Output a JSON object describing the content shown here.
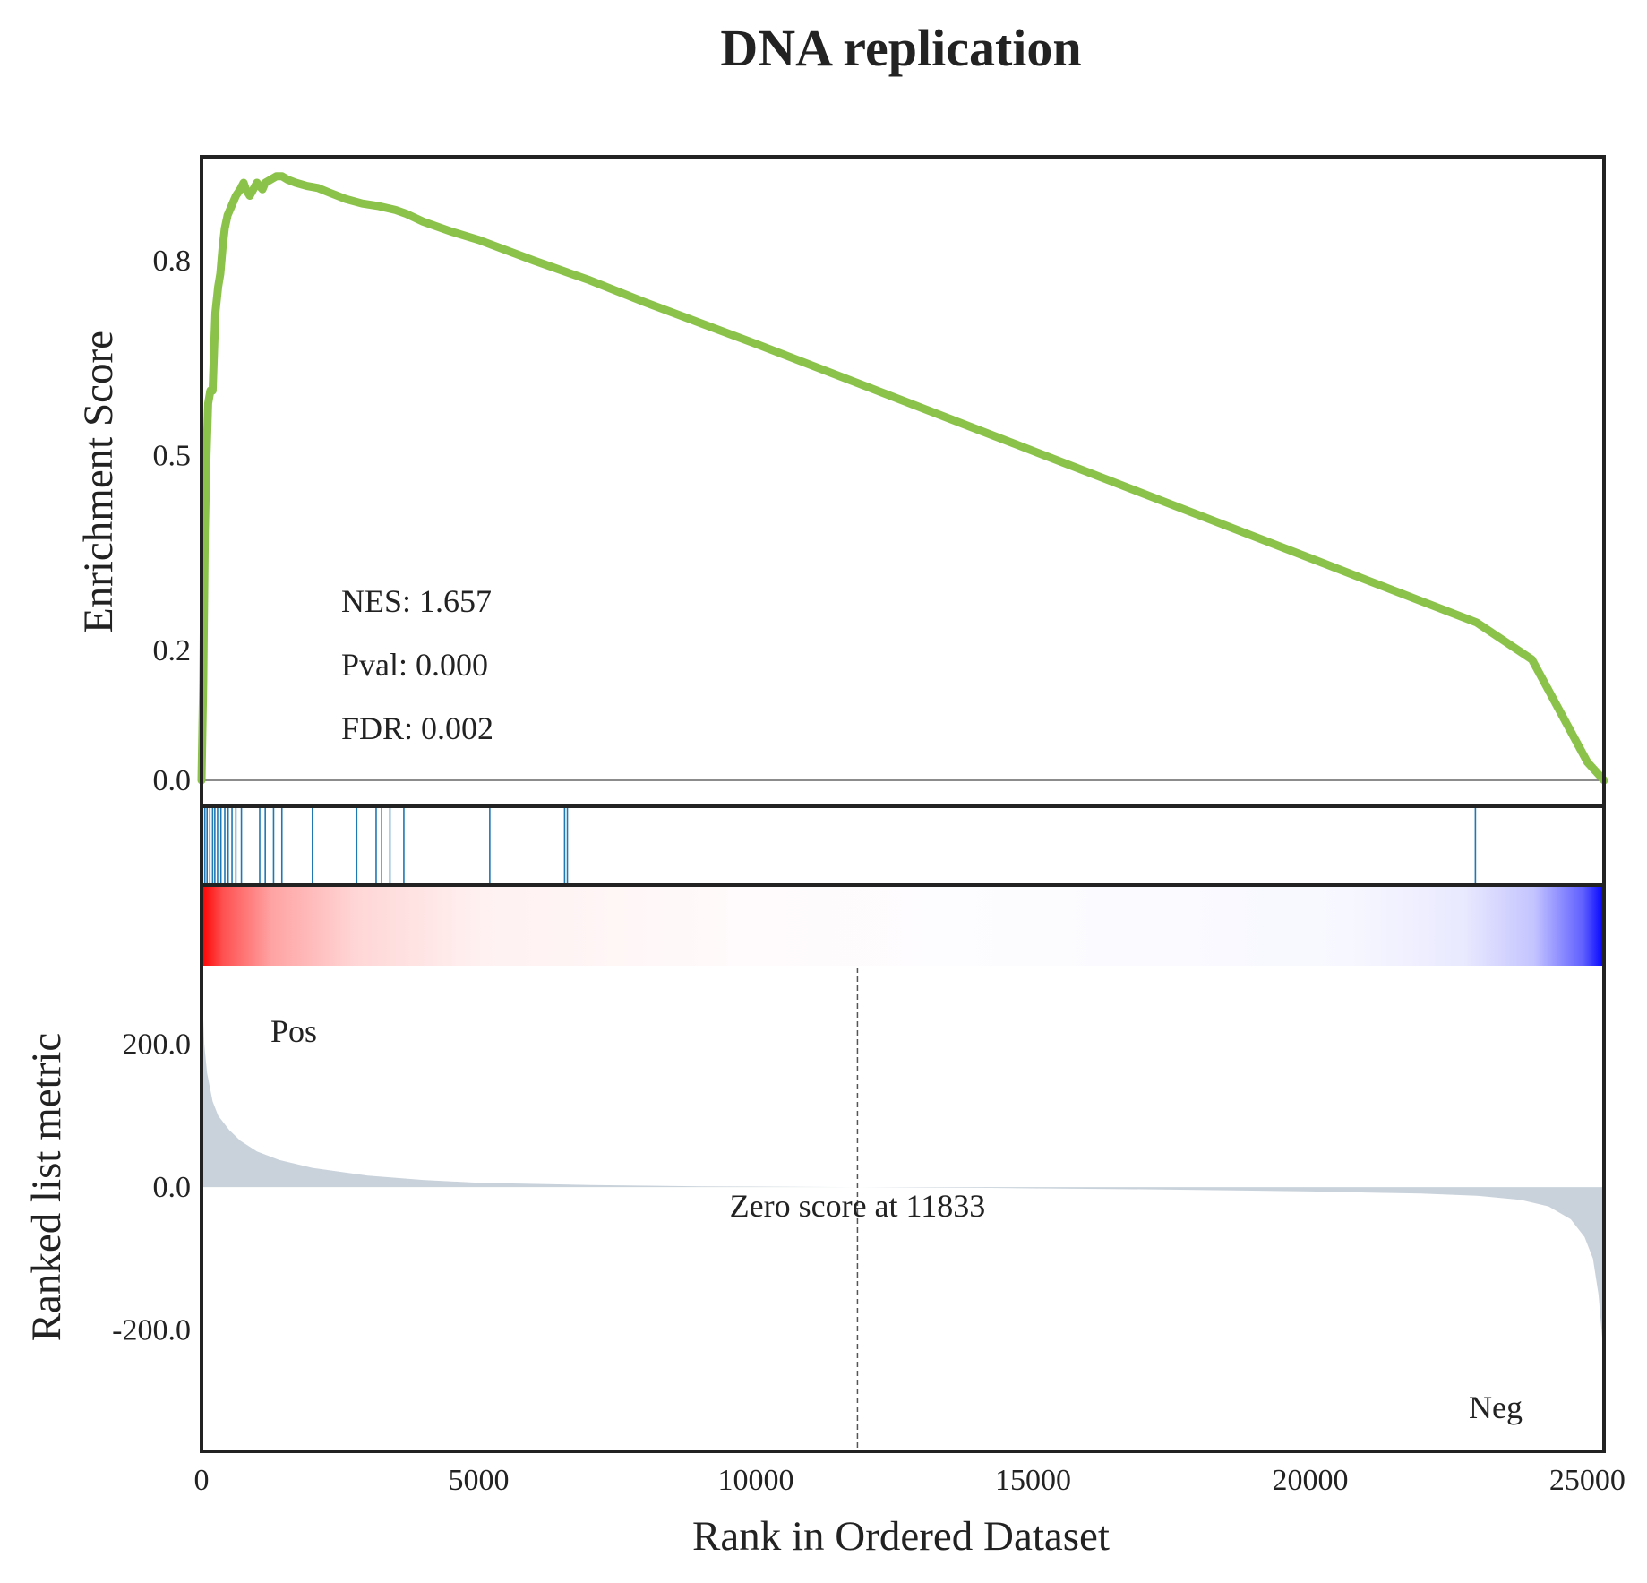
{
  "chart_data": {
    "type": "line",
    "title": "DNA replication",
    "es_panel": {
      "ylabel": "Enrichment Score",
      "yticks": [
        0.0,
        0.2,
        0.5,
        0.8
      ],
      "ytick_labels": [
        "0.0",
        "0.2",
        "0.5",
        "0.8"
      ],
      "ylim": [
        -0.04,
        0.96
      ],
      "line_color": "#8BC34A",
      "series": [
        {
          "x": [
            0,
            30,
            60,
            90,
            120,
            160,
            200,
            250,
            300,
            340,
            380,
            420,
            470,
            520,
            570,
            620,
            700,
            760,
            800,
            870,
            1000,
            1100,
            1150,
            1250,
            1350,
            1450,
            1550,
            1700,
            1900,
            2100,
            2300,
            2600,
            2900,
            3200,
            3500,
            3700,
            4000,
            4500,
            5000,
            5500,
            6000,
            7000,
            8000,
            9000,
            10000,
            12000,
            14000,
            16000,
            18000,
            20000,
            22000,
            23000,
            24000,
            25000,
            25300
          ],
          "y": [
            0.0,
            0.15,
            0.38,
            0.5,
            0.58,
            0.6,
            0.6,
            0.72,
            0.76,
            0.78,
            0.82,
            0.85,
            0.87,
            0.88,
            0.89,
            0.9,
            0.91,
            0.92,
            0.91,
            0.9,
            0.92,
            0.91,
            0.92,
            0.925,
            0.93,
            0.93,
            0.925,
            0.92,
            0.915,
            0.912,
            0.905,
            0.895,
            0.888,
            0.884,
            0.878,
            0.872,
            0.86,
            0.845,
            0.832,
            0.816,
            0.8,
            0.77,
            0.736,
            0.704,
            0.672,
            0.606,
            0.54,
            0.474,
            0.408,
            0.342,
            0.276,
            0.243,
            0.186,
            0.028,
            0.0
          ]
        }
      ],
      "annotations": [
        "NES: 1.657",
        "Pval: 0.000",
        "FDR: 0.002"
      ]
    },
    "hits": {
      "color": "#1F77B4",
      "positions": [
        20,
        60,
        100,
        150,
        200,
        240,
        290,
        350,
        420,
        480,
        550,
        620,
        720,
        1050,
        1150,
        1300,
        1450,
        2000,
        2800,
        3150,
        3250,
        3400,
        3650,
        5200,
        6550,
        6600,
        22980
      ]
    },
    "rank_panel": {
      "ylabel": "Ranked list metric",
      "xlabel": "Rank in Ordered Dataset",
      "xlim": [
        0,
        25300
      ],
      "ylim": [
        -370,
        310
      ],
      "xticks": [
        0,
        5000,
        10000,
        15000,
        20000,
        25000
      ],
      "xtick_labels": [
        "0",
        "5000",
        "10000",
        "15000",
        "20000",
        "25000"
      ],
      "yticks": [
        200,
        0,
        -200
      ],
      "ytick_labels": [
        "200.0",
        "0.0",
        "-200.0"
      ],
      "fill_color": "#C9D2DB",
      "zero_cross": 11833,
      "zero_label": "Zero score at 11833",
      "pos_label": "Pos",
      "neg_label": "Neg",
      "pos_color": "#FF0000",
      "neg_color": "#0000FF",
      "x": [
        0,
        50,
        100,
        200,
        300,
        400,
        500,
        700,
        1000,
        1400,
        2000,
        3000,
        4000,
        5000,
        7000,
        9000,
        11833,
        14000,
        17000,
        20000,
        22000,
        23000,
        23800,
        24300,
        24700,
        24950,
        25100,
        25200,
        25300
      ],
      "y": [
        300,
        200,
        160,
        120,
        100,
        90,
        80,
        65,
        50,
        38,
        27,
        16,
        10,
        6,
        3,
        1,
        0,
        -1,
        -3,
        -6,
        -9,
        -12,
        -18,
        -27,
        -45,
        -70,
        -100,
        -150,
        -240
      ]
    }
  }
}
